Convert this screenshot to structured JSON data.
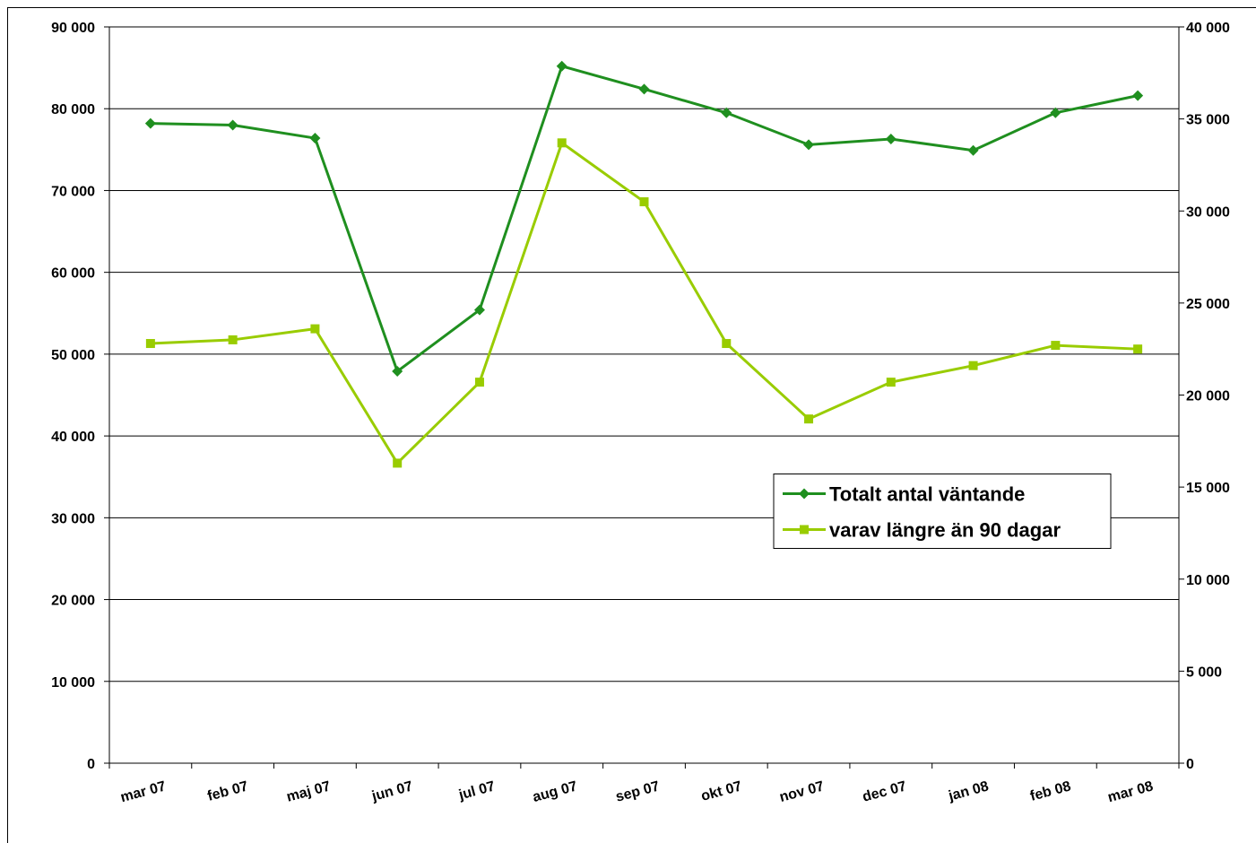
{
  "chart_data": {
    "type": "line",
    "categories": [
      "mar 07",
      "feb 07",
      "maj 07",
      "jun 07",
      "jul 07",
      "aug 07",
      "sep 07",
      "okt 07",
      "nov 07",
      "dec 07",
      "jan 08",
      "feb 08",
      "mar 08"
    ],
    "series": [
      {
        "name": "Totalt antal väntande",
        "color": "#1f8f1f",
        "marker": "diamond",
        "axis": "y",
        "values": [
          78200,
          78000,
          76400,
          47900,
          55400,
          85200,
          82400,
          79500,
          75600,
          76300,
          74900,
          79500,
          81600
        ]
      },
      {
        "name": "varav längre än 90 dagar",
        "color": "#99cc00",
        "marker": "square",
        "axis": "y2",
        "values": [
          22800,
          23000,
          23600,
          16300,
          20700,
          33700,
          30500,
          22800,
          18700,
          20700,
          21600,
          22700,
          22500
        ]
      }
    ],
    "ylim": [
      0,
      90000
    ],
    "yticks": [
      0,
      {
        "value": 10000,
        "label": "10 000"
      },
      {
        "value": 20000,
        "label": "20 000"
      },
      {
        "value": 30000,
        "label": "30 000"
      },
      {
        "value": 40000,
        "label": "40 000"
      },
      {
        "value": 50000,
        "label": "50 000"
      },
      {
        "value": 60000,
        "label": "60 000"
      },
      {
        "value": 70000,
        "label": "70 000"
      },
      {
        "value": 80000,
        "label": "80 000"
      },
      {
        "value": 90000,
        "label": "90 000"
      }
    ],
    "y2lim": [
      0,
      40000
    ],
    "y2ticks": [
      0,
      {
        "value": 5000,
        "label": "5 000"
      },
      {
        "value": 10000,
        "label": "10 000"
      },
      {
        "value": 15000,
        "label": "15 000"
      },
      {
        "value": 20000,
        "label": "20 000"
      },
      {
        "value": 25000,
        "label": "25 000"
      },
      {
        "value": 30000,
        "label": "30 000"
      },
      {
        "value": 35000,
        "label": "35 000"
      },
      {
        "value": 40000,
        "label": "40 000"
      }
    ],
    "grid": true,
    "legend": "center-right"
  }
}
